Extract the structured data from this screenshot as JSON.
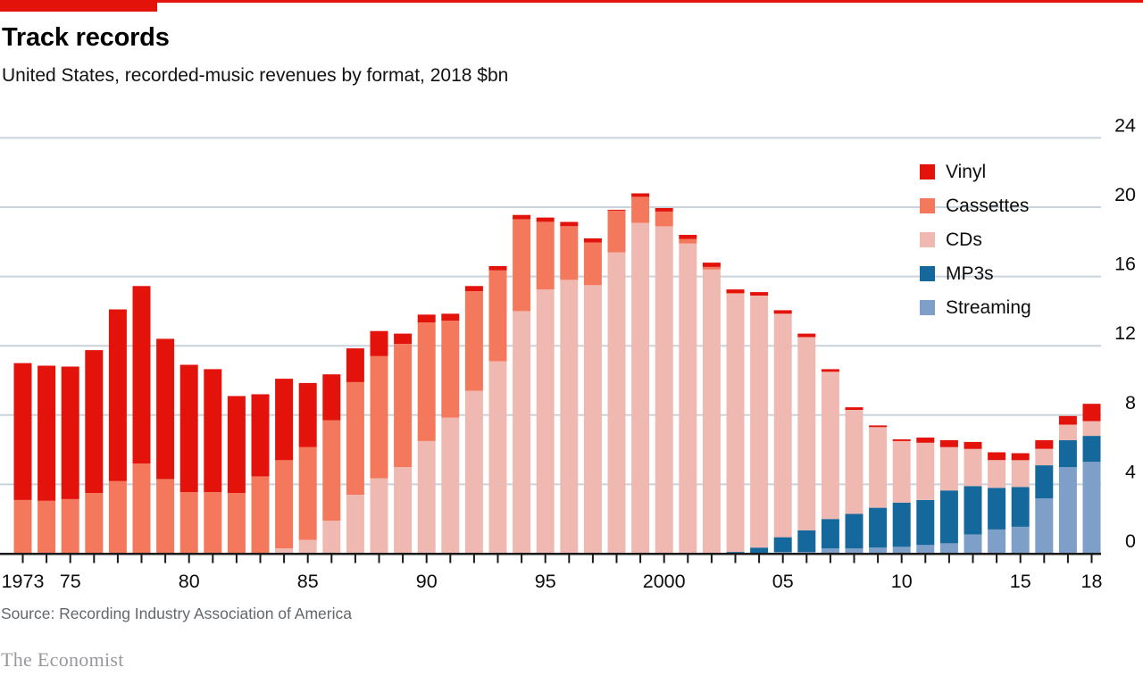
{
  "page": {
    "accent_color": "#E3120B",
    "gridline_color": "#C8D3DC",
    "axis_color": "#1a1a1a"
  },
  "header": {
    "title": "Track records",
    "subtitle": "United States, recorded-music revenues by format, 2018 $bn"
  },
  "footer": {
    "source": "Source: Recording Industry Association of America",
    "brand": "The Economist"
  },
  "chart_data": {
    "type": "bar",
    "stacked": true,
    "title": "Track records",
    "subtitle": "United States, recorded-music revenues by format, 2018 $bn",
    "ylabel": "2018 $bn",
    "xlabel": "",
    "ylim": [
      0,
      24
    ],
    "yticks": [
      0,
      4,
      8,
      12,
      16,
      20,
      24
    ],
    "y_axis_side": "right",
    "grid": "horizontal",
    "legend_position": "top-right",
    "x": [
      1973,
      1974,
      1975,
      1976,
      1977,
      1978,
      1979,
      1980,
      1981,
      1982,
      1983,
      1984,
      1985,
      1986,
      1987,
      1988,
      1989,
      1990,
      1991,
      1992,
      1993,
      1994,
      1995,
      1996,
      1997,
      1998,
      1999,
      2000,
      2001,
      2002,
      2003,
      2004,
      2005,
      2006,
      2007,
      2008,
      2009,
      2010,
      2011,
      2012,
      2013,
      2014,
      2015,
      2016,
      2017,
      2018
    ],
    "x_tick_labels": {
      "1973": "1973",
      "1975": "75",
      "1980": "80",
      "1985": "85",
      "1990": "90",
      "1995": "95",
      "2000": "2000",
      "2005": "05",
      "2010": "10",
      "2015": "15",
      "2018": "18"
    },
    "stack_order_bottom_to_top": [
      "Streaming",
      "MP3s",
      "CDs",
      "Cassettes",
      "Vinyl"
    ],
    "series": [
      {
        "name": "Vinyl",
        "color": "#E3120B",
        "values": [
          7.9,
          7.8,
          7.65,
          8.25,
          9.9,
          10.25,
          8.1,
          7.35,
          7.1,
          5.6,
          4.75,
          4.7,
          3.7,
          2.65,
          1.95,
          1.45,
          0.6,
          0.45,
          0.4,
          0.3,
          0.25,
          0.25,
          0.25,
          0.25,
          0.25,
          0.05,
          0.2,
          0.2,
          0.25,
          0.25,
          0.2,
          0.2,
          0.2,
          0.2,
          0.15,
          0.15,
          0.1,
          0.1,
          0.3,
          0.4,
          0.4,
          0.45,
          0.4,
          0.5,
          0.5,
          1.0
        ]
      },
      {
        "name": "Cassettes",
        "color": "#F4785C",
        "values": [
          3.1,
          3.05,
          3.15,
          3.5,
          4.2,
          5.2,
          4.3,
          3.55,
          3.55,
          3.5,
          4.4,
          5.1,
          5.35,
          5.8,
          6.5,
          7.05,
          7.1,
          6.85,
          5.6,
          5.75,
          5.25,
          5.3,
          3.9,
          3.1,
          2.45,
          2.4,
          1.5,
          0.85,
          0.25,
          0.15,
          0.05,
          0,
          0,
          0,
          0,
          0,
          0,
          0,
          0,
          0,
          0,
          0,
          0,
          0,
          0,
          0
        ]
      },
      {
        "name": "CDs",
        "color": "#EFB8B1",
        "values": [
          0,
          0,
          0,
          0,
          0,
          0,
          0,
          0,
          0,
          0,
          0.05,
          0.3,
          0.8,
          1.9,
          3.4,
          4.35,
          5.0,
          6.5,
          7.85,
          9.4,
          11.1,
          14.0,
          15.25,
          15.8,
          15.5,
          17.4,
          19.1,
          18.9,
          17.9,
          16.4,
          14.9,
          14.55,
          12.9,
          11.15,
          8.5,
          6.0,
          4.65,
          3.55,
          3.3,
          2.5,
          2.15,
          1.6,
          1.55,
          0.95,
          0.9,
          0.85
        ]
      },
      {
        "name": "MP3s",
        "color": "#15689B",
        "values": [
          0,
          0,
          0,
          0,
          0,
          0,
          0,
          0,
          0,
          0,
          0,
          0,
          0,
          0,
          0,
          0,
          0,
          0,
          0,
          0,
          0,
          0,
          0,
          0,
          0,
          0,
          0,
          0,
          0,
          0,
          0.1,
          0.35,
          0.85,
          1.25,
          1.7,
          2.0,
          2.3,
          2.55,
          2.6,
          3.05,
          2.8,
          2.4,
          2.3,
          1.9,
          1.55,
          1.5
        ]
      },
      {
        "name": "Streaming",
        "color": "#7E9FC7",
        "values": [
          0,
          0,
          0,
          0,
          0,
          0,
          0,
          0,
          0,
          0,
          0,
          0,
          0,
          0,
          0,
          0,
          0,
          0,
          0,
          0,
          0,
          0,
          0,
          0,
          0,
          0,
          0,
          0,
          0,
          0,
          0,
          0,
          0.1,
          0.1,
          0.3,
          0.3,
          0.35,
          0.4,
          0.5,
          0.6,
          1.1,
          1.4,
          1.55,
          3.2,
          5.0,
          5.3
        ]
      }
    ]
  }
}
